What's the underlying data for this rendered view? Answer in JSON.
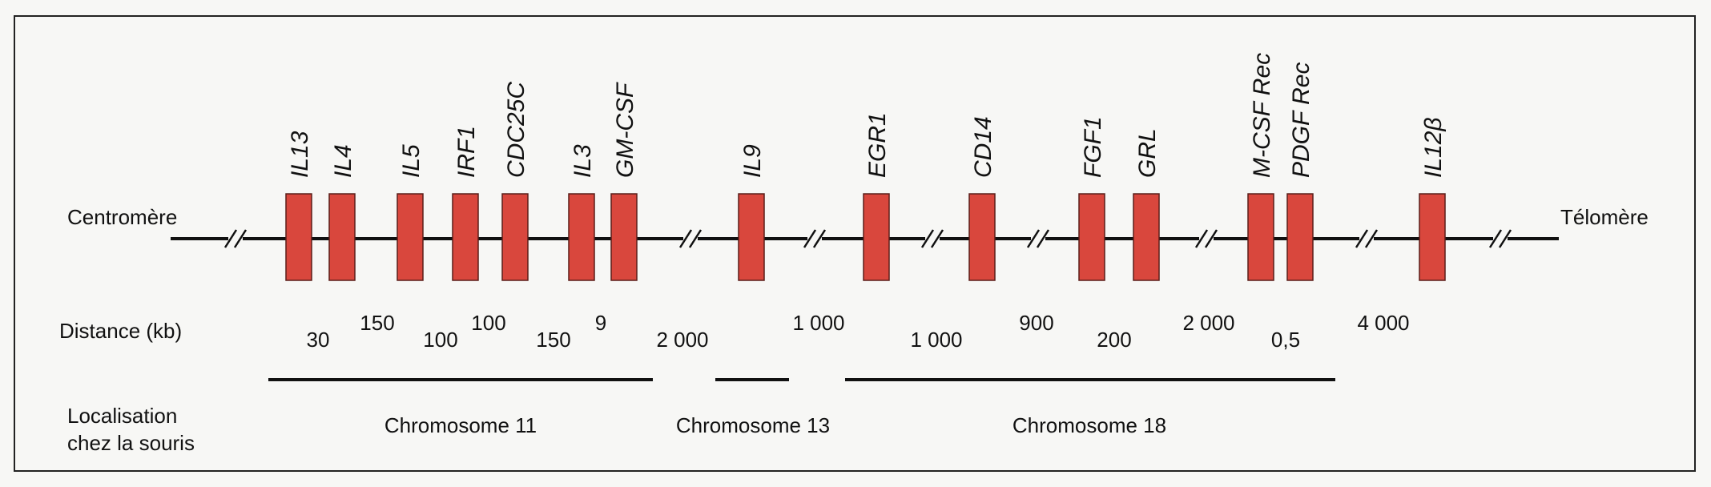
{
  "left_label": "Centromère",
  "right_label": "Télomère",
  "distance_heading": "Distance (kb)",
  "localisation_heading": [
    "Localisation",
    "chez la souris"
  ],
  "colors": {
    "gene_fill": "#d9473d",
    "gene_stroke": "#5a1e1a",
    "line": "#111111",
    "frame": "#222222",
    "background": "#f7f7f5"
  },
  "genes": [
    "IL13",
    "IL4",
    "IL5",
    "IRF1",
    "CDC25C",
    "IL3",
    "GM-CSF",
    "IL9",
    "EGR1",
    "CD14",
    "FGF1",
    "GRL",
    "M-CSF Rec",
    "PDGF Rec",
    "IL12β"
  ],
  "distances": [
    "30",
    "150",
    "100",
    "100",
    "150",
    "9",
    "2 000",
    "1 000",
    "1 000",
    "900",
    "200",
    "2 000",
    "0,5",
    "4 000"
  ],
  "chromosomes": [
    "Chromosome 11",
    "Chromosome 13",
    "Chromosome 18"
  ]
}
